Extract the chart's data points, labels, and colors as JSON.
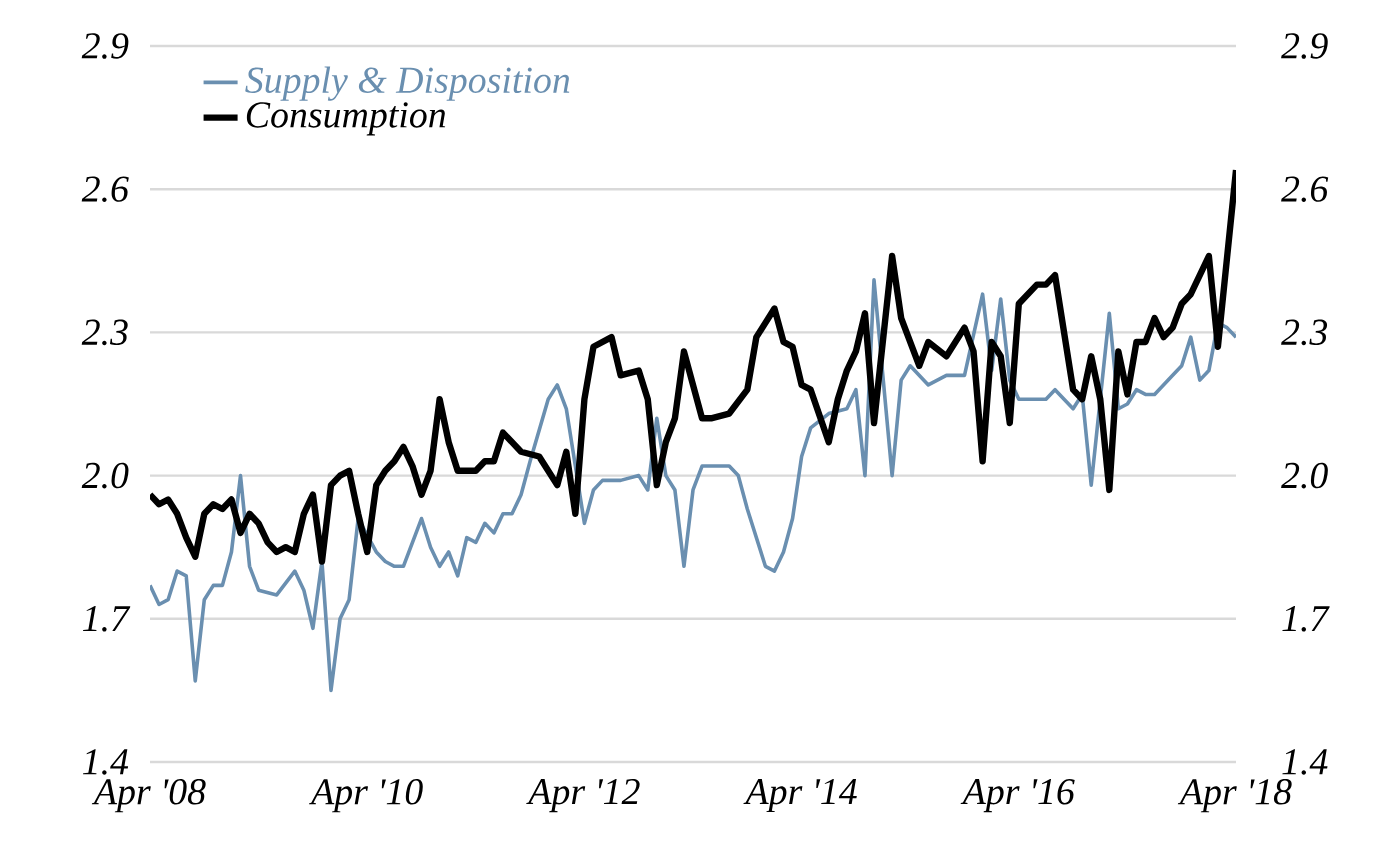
{
  "chart_data": {
    "type": "line",
    "ylim": [
      1.4,
      2.9
    ],
    "yticks": [
      1.4,
      1.7,
      {
        "value": 2.0,
        "label": "2.0"
      },
      2.3,
      2.6,
      2.9
    ],
    "y2lim": [
      1.4,
      2.9
    ],
    "y2ticks": [
      1.4,
      1.7,
      {
        "value": 2.0,
        "label": "2.0"
      },
      2.3,
      2.6,
      2.9
    ],
    "xlim": [
      "2008-04",
      "2018-04"
    ],
    "xticks": [
      {
        "value": "2008-04",
        "label": "Apr '08"
      },
      {
        "value": "2010-04",
        "label": "Apr '10"
      },
      {
        "value": "2012-04",
        "label": "Apr '12"
      },
      {
        "value": "2014-04",
        "label": "Apr '14"
      },
      {
        "value": "2016-04",
        "label": "Apr '16"
      },
      {
        "value": "2018-04",
        "label": "Apr '18"
      }
    ],
    "grid": "y",
    "legend": "top left",
    "marker": "none",
    "line_style": "solid",
    "series": [
      {
        "name": "Supply & Disposition",
        "color": "#6a8fb0",
        "x": [
          "2008-04",
          "2008-05",
          "2008-06",
          "2008-07",
          "2008-08",
          "2008-09",
          "2008-10",
          "2008-11",
          "2008-12",
          "2009-01",
          "2009-02",
          "2009-03",
          "2009-04",
          "2009-06",
          "2009-08",
          "2009-09",
          "2009-10",
          "2009-11",
          "2009-12",
          "2010-01",
          "2010-02",
          "2010-03",
          "2010-05",
          "2010-06",
          "2010-07",
          "2010-08",
          "2010-10",
          "2010-11",
          "2010-12",
          "2011-01",
          "2011-02",
          "2011-03",
          "2011-04",
          "2011-05",
          "2011-06",
          "2011-07",
          "2011-08",
          "2011-09",
          "2011-10",
          "2011-12",
          "2012-01",
          "2012-02",
          "2012-03",
          "2012-04",
          "2012-05",
          "2012-06",
          "2012-08",
          "2012-10",
          "2012-11",
          "2012-12",
          "2013-01",
          "2013-02",
          "2013-03",
          "2013-04",
          "2013-05",
          "2013-08",
          "2013-09",
          "2013-10",
          "2013-11",
          "2013-12",
          "2014-01",
          "2014-02",
          "2014-03",
          "2014-04",
          "2014-05",
          "2014-07",
          "2014-09",
          "2014-10",
          "2014-11",
          "2014-12",
          "2015-02",
          "2015-03",
          "2015-04",
          "2015-06",
          "2015-08",
          "2015-10",
          "2015-12",
          "2016-01",
          "2016-02",
          "2016-03",
          "2016-04",
          "2016-07",
          "2016-08",
          "2016-10",
          "2016-11",
          "2016-12",
          "2017-02",
          "2017-03",
          "2017-04",
          "2017-05",
          "2017-06",
          "2017-07",
          "2017-09",
          "2017-10",
          "2017-11",
          "2017-12",
          "2018-01",
          "2018-02",
          "2018-03",
          "2018-04"
        ],
        "values": [
          1.77,
          1.73,
          1.74,
          1.8,
          1.79,
          1.57,
          1.74,
          1.77,
          1.77,
          1.84,
          2.0,
          1.81,
          1.76,
          1.75,
          1.8,
          1.76,
          1.68,
          1.82,
          1.55,
          1.7,
          1.74,
          1.91,
          1.84,
          1.82,
          1.81,
          1.81,
          1.91,
          1.85,
          1.81,
          1.84,
          1.79,
          1.87,
          1.86,
          1.9,
          1.88,
          1.92,
          1.92,
          1.96,
          2.03,
          2.16,
          2.19,
          2.14,
          2.02,
          1.9,
          1.97,
          1.99,
          1.99,
          2.0,
          1.97,
          2.12,
          2.0,
          1.97,
          1.81,
          1.97,
          2.02,
          2.02,
          2.0,
          1.93,
          1.87,
          1.81,
          1.8,
          1.84,
          1.91,
          2.04,
          2.1,
          2.13,
          2.14,
          2.18,
          2.0,
          2.41,
          2.0,
          2.2,
          2.23,
          2.19,
          2.21,
          2.21,
          2.38,
          2.22,
          2.37,
          2.2,
          2.16,
          2.16,
          2.18,
          2.14,
          2.17,
          1.98,
          2.34,
          2.14,
          2.15,
          2.18,
          2.17,
          2.17,
          2.21,
          2.23,
          2.29,
          2.2,
          2.22,
          2.32,
          2.31,
          2.29
        ]
      },
      {
        "name": "Consumption",
        "color": "#000000",
        "x": [
          "2008-04",
          "2008-05",
          "2008-06",
          "2008-07",
          "2008-08",
          "2008-09",
          "2008-10",
          "2008-11",
          "2008-12",
          "2009-01",
          "2009-02",
          "2009-03",
          "2009-04",
          "2009-05",
          "2009-06",
          "2009-07",
          "2009-08",
          "2009-09",
          "2009-10",
          "2009-11",
          "2009-12",
          "2010-01",
          "2010-02",
          "2010-03",
          "2010-04",
          "2010-05",
          "2010-06",
          "2010-07",
          "2010-08",
          "2010-09",
          "2010-10",
          "2010-11",
          "2010-12",
          "2011-01",
          "2011-02",
          "2011-03",
          "2011-04",
          "2011-05",
          "2011-06",
          "2011-07",
          "2011-09",
          "2011-11",
          "2011-12",
          "2012-01",
          "2012-02",
          "2012-03",
          "2012-04",
          "2012-05",
          "2012-07",
          "2012-08",
          "2012-10",
          "2012-11",
          "2012-12",
          "2013-01",
          "2013-02",
          "2013-03",
          "2013-05",
          "2013-06",
          "2013-08",
          "2013-10",
          "2013-11",
          "2013-12",
          "2014-01",
          "2014-02",
          "2014-03",
          "2014-04",
          "2014-05",
          "2014-07",
          "2014-08",
          "2014-09",
          "2014-10",
          "2014-11",
          "2014-12",
          "2015-02",
          "2015-03",
          "2015-04",
          "2015-05",
          "2015-06",
          "2015-08",
          "2015-10",
          "2015-11",
          "2015-12",
          "2016-01",
          "2016-02",
          "2016-03",
          "2016-04",
          "2016-06",
          "2016-07",
          "2016-08",
          "2016-10",
          "2016-11",
          "2016-12",
          "2017-01",
          "2017-02",
          "2017-03",
          "2017-04",
          "2017-05",
          "2017-06",
          "2017-07",
          "2017-08",
          "2017-09",
          "2017-10",
          "2017-11",
          "2018-01",
          "2018-02",
          "2018-04"
        ],
        "values": [
          1.96,
          1.94,
          1.95,
          1.92,
          1.87,
          1.83,
          1.92,
          1.94,
          1.93,
          1.95,
          1.88,
          1.92,
          1.9,
          1.86,
          1.84,
          1.85,
          1.84,
          1.92,
          1.96,
          1.82,
          1.98,
          2.0,
          2.01,
          1.92,
          1.84,
          1.98,
          2.01,
          2.03,
          2.06,
          2.02,
          1.96,
          2.01,
          2.16,
          2.07,
          2.01,
          2.01,
          2.01,
          2.03,
          2.03,
          2.09,
          2.05,
          2.04,
          2.01,
          1.98,
          2.05,
          1.92,
          2.16,
          2.27,
          2.29,
          2.21,
          2.22,
          2.16,
          1.98,
          2.07,
          2.12,
          2.26,
          2.12,
          2.12,
          2.13,
          2.18,
          2.29,
          2.32,
          2.35,
          2.28,
          2.27,
          2.19,
          2.18,
          2.07,
          2.16,
          2.22,
          2.26,
          2.34,
          2.11,
          2.46,
          2.33,
          2.28,
          2.23,
          2.28,
          2.25,
          2.31,
          2.26,
          2.03,
          2.28,
          2.25,
          2.11,
          2.36,
          2.4,
          2.4,
          2.42,
          2.18,
          2.16,
          2.25,
          2.16,
          1.97,
          2.26,
          2.17,
          2.28,
          2.28,
          2.33,
          2.29,
          2.31,
          2.36,
          2.38,
          2.46,
          2.27,
          2.64
        ]
      }
    ]
  }
}
